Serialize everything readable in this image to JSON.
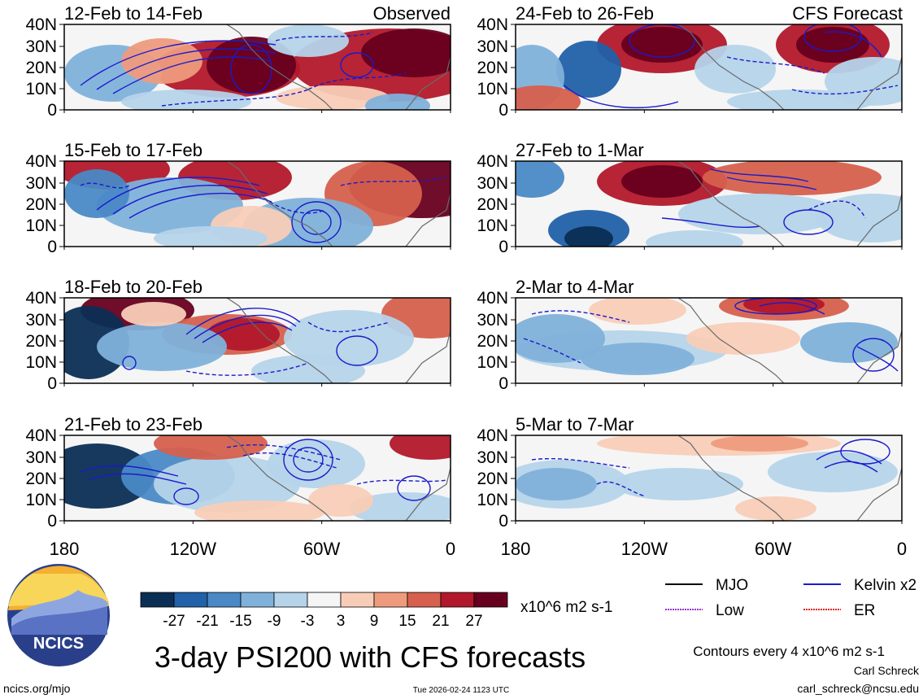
{
  "figure": {
    "title": "3-day PSI200 with CFS forecasts",
    "left_header": "Observed",
    "right_header": "CFS Forecast",
    "website": "ncics.org/mjo",
    "timestamp": "Tue 2026-02-24 1123 UTC",
    "author": "Carl Schreck",
    "email": "carl_schreck@ncsu.edu",
    "logo_text": "NCICS"
  },
  "chart_data": {
    "type": "heatmap",
    "variable": "200-hPa streamfunction anomaly (PSI200), 3-day mean",
    "xaxis": {
      "ticks": [
        "180",
        "120W",
        "60W",
        "0"
      ],
      "range_deg_west": [
        180,
        0
      ]
    },
    "yaxis": {
      "ticks": [
        "0",
        "10N",
        "20N",
        "30N",
        "40N"
      ],
      "range_deg_north": [
        0,
        40
      ]
    },
    "colorbar": {
      "units": "x10^6 m2 s-1",
      "labels": [
        "-27",
        "-21",
        "-15",
        "-9",
        "-3",
        "3",
        "9",
        "15",
        "21",
        "27"
      ],
      "colors": [
        "#0b2e54",
        "#2161a8",
        "#4a89c6",
        "#7fb1da",
        "#b5d4ea",
        "#f5f5f5",
        "#f8cdb7",
        "#ee9b7d",
        "#d6604d",
        "#b2182b",
        "#67001f"
      ]
    },
    "contour_note": "Contours every 4 x10^6 m2 s-1",
    "contour_legend": [
      {
        "label": "MJO",
        "color": "#000000"
      },
      {
        "label": "Kelvin x2",
        "color": "#1a1acc"
      },
      {
        "label": "Low",
        "color": "#9933cc"
      },
      {
        "label": "ER",
        "color": "#dd2222"
      }
    ],
    "panels": [
      {
        "label": "12-Feb to 14-Feb",
        "source": "Observed"
      },
      {
        "label": "15-Feb to 17-Feb",
        "source": "Observed"
      },
      {
        "label": "18-Feb to 20-Feb",
        "source": "Observed"
      },
      {
        "label": "21-Feb to 23-Feb",
        "source": "Observed"
      },
      {
        "label": "24-Feb to 26-Feb",
        "source": "CFS Forecast"
      },
      {
        "label": "27-Feb to 1-Mar",
        "source": "CFS Forecast"
      },
      {
        "label": "2-Mar to 4-Mar",
        "source": "CFS Forecast"
      },
      {
        "label": "5-Mar to 7-Mar",
        "source": "CFS Forecast"
      }
    ]
  }
}
